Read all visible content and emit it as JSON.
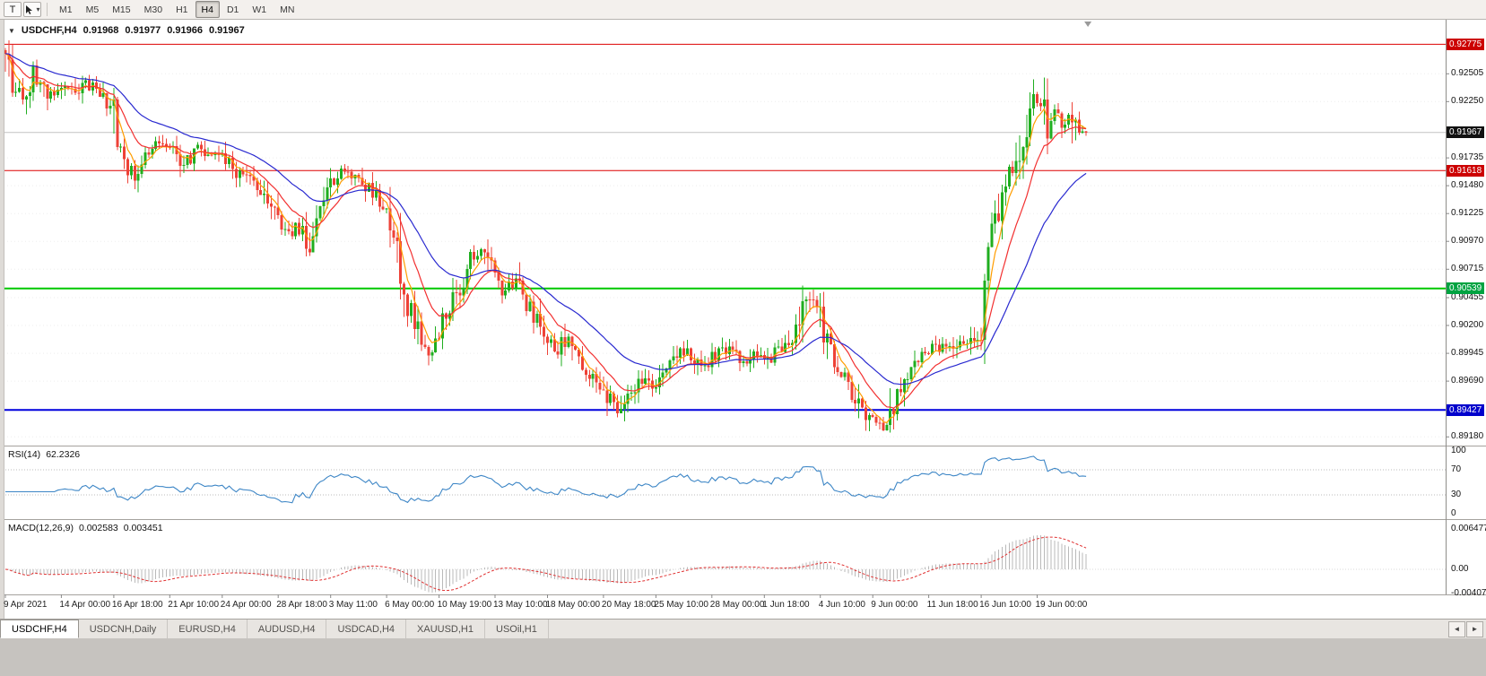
{
  "icons": {
    "collapse": "▼",
    "dropdown": "▾",
    "scroll_left": "◄",
    "scroll_right": "►"
  },
  "toolbar": {
    "tool_button_label": "T",
    "timeframes": [
      "M1",
      "M5",
      "M15",
      "M30",
      "H1",
      "H4",
      "D1",
      "W1",
      "MN"
    ],
    "active_timeframe": "H4"
  },
  "chart": {
    "symbol_period": "USDCHF,H4",
    "open": "0.91968",
    "high": "0.91977",
    "low": "0.91966",
    "close": "0.91967"
  },
  "indicators": {
    "rsi_label": "RSI(14)",
    "rsi_value": "62.2326",
    "macd_label": "MACD(12,26,9)",
    "macd_value_main": "0.002583",
    "macd_value_signal": "0.003451"
  },
  "price_axis": {
    "labels": [
      {
        "text": "0.92775",
        "price": 0.92775,
        "tag": "red"
      },
      {
        "text": "0.92505",
        "price": 0.92505
      },
      {
        "text": "0.92250",
        "price": 0.9225
      },
      {
        "text": "0.91967",
        "price": 0.91967,
        "tag": "black"
      },
      {
        "text": "0.91735",
        "price": 0.91735
      },
      {
        "text": "0.91618",
        "price": 0.91618,
        "tag": "red"
      },
      {
        "text": "0.91480",
        "price": 0.9148
      },
      {
        "text": "0.91225",
        "price": 0.91225
      },
      {
        "text": "0.90970",
        "price": 0.9097
      },
      {
        "text": "0.90715",
        "price": 0.90715
      },
      {
        "text": "0.90539",
        "price": 0.90539,
        "tag": "green"
      },
      {
        "text": "0.90455",
        "price": 0.90455
      },
      {
        "text": "0.90200",
        "price": 0.902
      },
      {
        "text": "0.89945",
        "price": 0.89945
      },
      {
        "text": "0.89690",
        "price": 0.8969
      },
      {
        "text": "0.89427",
        "price": 0.89427,
        "tag": "blue"
      },
      {
        "text": "0.89180",
        "price": 0.8918
      }
    ]
  },
  "rsi_axis": [
    {
      "text": "100",
      "value": 100
    },
    {
      "text": "70",
      "value": 70
    },
    {
      "text": "30",
      "value": 30
    },
    {
      "text": "0",
      "value": 0
    }
  ],
  "macd_axis": [
    {
      "text": "0.006477",
      "value": 0.006477
    },
    {
      "text": "0.00",
      "value": 0
    },
    {
      "text": "-0.004073",
      "value": -0.004073
    }
  ],
  "time_axis": [
    {
      "text": "9 Apr 2021",
      "bar": 0
    },
    {
      "text": "14 Apr 00:00",
      "bar": 16
    },
    {
      "text": "16 Apr 18:00",
      "bar": 31
    },
    {
      "text": "21 Apr 10:00",
      "bar": 47
    },
    {
      "text": "24 Apr 00:00",
      "bar": 62
    },
    {
      "text": "28 Apr 18:00",
      "bar": 78
    },
    {
      "text": "3 May 11:00",
      "bar": 93
    },
    {
      "text": "6 May 00:00",
      "bar": 109
    },
    {
      "text": "10 May 19:00",
      "bar": 124
    },
    {
      "text": "13 May 10:00",
      "bar": 140
    },
    {
      "text": "18 May 00:00",
      "bar": 155
    },
    {
      "text": "20 May 18:00",
      "bar": 171
    },
    {
      "text": "25 May 10:00",
      "bar": 186
    },
    {
      "text": "28 May 00:00",
      "bar": 202
    },
    {
      "text": "1 Jun 18:00",
      "bar": 217
    },
    {
      "text": "4 Jun 10:00",
      "bar": 233
    },
    {
      "text": "9 Jun 00:00",
      "bar": 248
    },
    {
      "text": "11 Jun 18:00",
      "bar": 264
    },
    {
      "text": "16 Jun 10:00",
      "bar": 279
    },
    {
      "text": "19 Jun 00:00",
      "bar": 295
    }
  ],
  "tabs": [
    {
      "label": "USDCHF,H4",
      "active": true
    },
    {
      "label": "USDCNH,Daily",
      "active": false
    },
    {
      "label": "EURUSD,H4",
      "active": false
    },
    {
      "label": "AUDUSD,H4",
      "active": false
    },
    {
      "label": "USDCAD,H4",
      "active": false
    },
    {
      "label": "XAUUSD,H1",
      "active": false
    },
    {
      "label": "USOil,H1",
      "active": false
    }
  ],
  "colors": {
    "bull": "#1fae1f",
    "bear": "#ee4237",
    "ma_fast": "#ff9d00",
    "ma_mid": "#f23030",
    "ma_slow": "#2a2ad0",
    "hline_red": "#dd0000",
    "hline_green": "#00c800",
    "hline_blue": "#0000dd",
    "current_line": "#c2c2c2",
    "tag_red": "#cc0000",
    "tag_black": "#111111",
    "tag_green": "#00a341",
    "tag_blue": "#0000cc",
    "rsi_line": "#3d86c6",
    "rsi_levels": "#bbbbbb",
    "macd_hist": "#b9b9b9",
    "macd_signal": "#e03030",
    "grid": "#ededed",
    "splitter": "#a5a29e",
    "axis_divider": "#8f8d8a"
  },
  "chart_data": {
    "type": "candlestick",
    "symbol": "USDCHF",
    "period": "H4",
    "bars": 310,
    "price_range": [
      0.891,
      0.93
    ],
    "current_price": 0.91967,
    "hlines": [
      {
        "price": 0.92775,
        "color": "red",
        "width": 1
      },
      {
        "price": 0.91618,
        "color": "red",
        "width": 1
      },
      {
        "price": 0.90539,
        "color": "green",
        "width": 2
      },
      {
        "price": 0.89427,
        "color": "blue",
        "width": 2
      }
    ],
    "price_path_anchors": [
      [
        0,
        0.9272
      ],
      [
        3,
        0.924
      ],
      [
        6,
        0.9232
      ],
      [
        9,
        0.9252
      ],
      [
        13,
        0.923
      ],
      [
        16,
        0.9243
      ],
      [
        20,
        0.9228
      ],
      [
        24,
        0.9241
      ],
      [
        28,
        0.9233
      ],
      [
        31,
        0.9219
      ],
      [
        34,
        0.9172
      ],
      [
        37,
        0.9158
      ],
      [
        41,
        0.9173
      ],
      [
        45,
        0.9188
      ],
      [
        49,
        0.918
      ],
      [
        52,
        0.9168
      ],
      [
        55,
        0.9183
      ],
      [
        58,
        0.9176
      ],
      [
        62,
        0.918
      ],
      [
        66,
        0.9163
      ],
      [
        70,
        0.9152
      ],
      [
        74,
        0.914
      ],
      [
        78,
        0.9118
      ],
      [
        81,
        0.9098
      ],
      [
        84,
        0.9112
      ],
      [
        87,
        0.9092
      ],
      [
        90,
        0.912
      ],
      [
        94,
        0.9148
      ],
      [
        98,
        0.9163
      ],
      [
        101,
        0.9155
      ],
      [
        104,
        0.9146
      ],
      [
        107,
        0.9136
      ],
      [
        110,
        0.912
      ],
      [
        113,
        0.9085
      ],
      [
        116,
        0.9035
      ],
      [
        119,
        0.9008
      ],
      [
        122,
        0.8995
      ],
      [
        125,
        0.9018
      ],
      [
        128,
        0.9038
      ],
      [
        131,
        0.906
      ],
      [
        134,
        0.9082
      ],
      [
        137,
        0.9088
      ],
      [
        140,
        0.907
      ],
      [
        143,
        0.9052
      ],
      [
        146,
        0.9062
      ],
      [
        149,
        0.904
      ],
      [
        152,
        0.9028
      ],
      [
        155,
        0.9006
      ],
      [
        158,
        0.8994
      ],
      [
        161,
        0.901
      ],
      [
        164,
        0.899
      ],
      [
        167,
        0.8979
      ],
      [
        170,
        0.8969
      ],
      [
        173,
        0.8954
      ],
      [
        176,
        0.8944
      ],
      [
        179,
        0.8958
      ],
      [
        182,
        0.8972
      ],
      [
        185,
        0.8962
      ],
      [
        188,
        0.8976
      ],
      [
        191,
        0.8986
      ],
      [
        194,
        0.8996
      ],
      [
        197,
        0.899
      ],
      [
        200,
        0.8982
      ],
      [
        203,
        0.8991
      ],
      [
        206,
        0.8999
      ],
      [
        209,
        0.8992
      ],
      [
        212,
        0.8986
      ],
      [
        215,
        0.8993
      ],
      [
        218,
        0.8988
      ],
      [
        221,
        0.8996
      ],
      [
        224,
        0.9002
      ],
      [
        227,
        0.9016
      ],
      [
        230,
        0.9048
      ],
      [
        233,
        0.9034
      ],
      [
        236,
        0.8999
      ],
      [
        239,
        0.8979
      ],
      [
        242,
        0.8964
      ],
      [
        245,
        0.8945
      ],
      [
        248,
        0.8934
      ],
      [
        252,
        0.8922
      ],
      [
        255,
        0.8956
      ],
      [
        258,
        0.8976
      ],
      [
        261,
        0.899
      ],
      [
        264,
        0.8996
      ],
      [
        267,
        0.9001
      ],
      [
        270,
        0.8997
      ],
      [
        273,
        0.9006
      ],
      [
        276,
        0.9001
      ],
      [
        279,
        0.9012
      ],
      [
        281,
        0.9058
      ],
      [
        283,
        0.9105
      ],
      [
        285,
        0.914
      ],
      [
        287,
        0.916
      ],
      [
        289,
        0.9148
      ],
      [
        291,
        0.9182
      ],
      [
        293,
        0.921
      ],
      [
        295,
        0.9228
      ],
      [
        297,
        0.9224
      ],
      [
        299,
        0.92
      ],
      [
        301,
        0.9212
      ],
      [
        303,
        0.9206
      ],
      [
        305,
        0.9213
      ],
      [
        307,
        0.9192
      ],
      [
        309,
        0.9197
      ]
    ],
    "indicators": {
      "moving_averages": [
        {
          "period": 5,
          "color": "#ff9d00"
        },
        {
          "period": 13,
          "color": "#f23030"
        },
        {
          "period": 34,
          "color": "#2a2ad0"
        }
      ],
      "rsi": {
        "period": 14,
        "current": 62.2326,
        "levels": [
          30,
          70
        ],
        "scale": [
          0,
          100
        ]
      },
      "macd": {
        "fast": 12,
        "slow": 26,
        "signal": 9,
        "current_hist": 0.002583,
        "current_signal": 0.003451,
        "axis_max": 0.006477,
        "axis_min": -0.004073
      }
    }
  }
}
